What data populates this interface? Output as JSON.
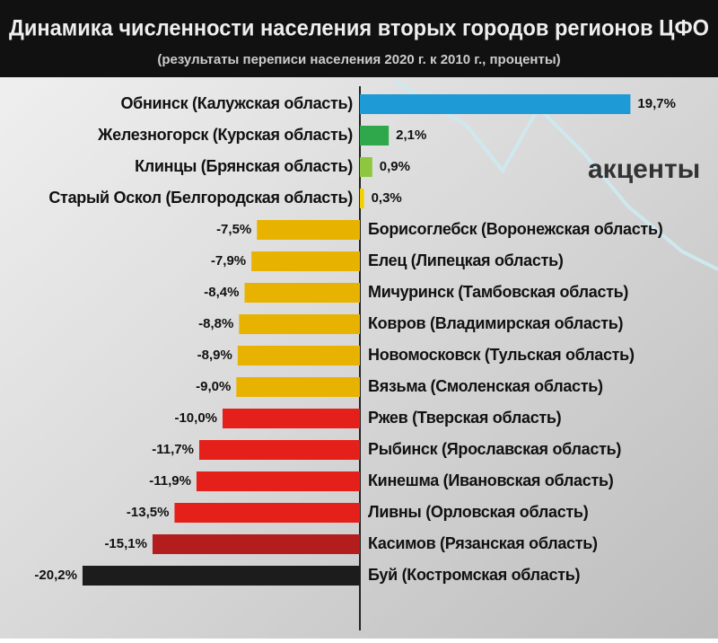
{
  "chart_data": {
    "type": "hbar",
    "title": "Динамика численности населения вторых городов регионов ЦФО",
    "subtitle": "(результаты переписи населения 2020 г. к 2010 г., проценты)",
    "logo": "акценты",
    "categories": [
      "Обнинск (Калужская область)",
      "Железногорск (Курская область)",
      "Клинцы (Брянская область)",
      "Старый Оскол (Белгородская область)",
      "Борисоглебск (Воронежская область)",
      "Елец (Липецкая область)",
      "Мичуринск (Тамбовская область)",
      "Ковров (Владимирская область)",
      "Новомосковск (Тульская область)",
      "Вязьма (Смоленская область)",
      "Ржев (Тверская область)",
      "Рыбинск (Ярославская область)",
      "Кинешма (Ивановская область)",
      "Ливны (Орловская область)",
      "Касимов (Рязанская область)",
      "Буй (Костромская область)"
    ],
    "values": [
      19.7,
      2.1,
      0.9,
      0.3,
      -7.5,
      -7.9,
      -8.4,
      -8.8,
      -8.9,
      -9.0,
      -10.0,
      -11.7,
      -11.9,
      -13.5,
      -15.1,
      -20.2
    ],
    "value_labels": [
      "19,7%",
      "2,1%",
      "0,9%",
      "0,3%",
      "-7,5%",
      "-7,9%",
      "-8,4%",
      "-8,8%",
      "-8,9%",
      "-9,0%",
      "-10,0%",
      "-11,7%",
      "-11,9%",
      "-13,5%",
      "-15,1%",
      "-20,2%"
    ],
    "colors": [
      "#1e9ad6",
      "#2ea84a",
      "#8dc63f",
      "#f2d000",
      "#e8b300",
      "#e8b300",
      "#e8b300",
      "#e8b300",
      "#e8b300",
      "#e8b300",
      "#e5201b",
      "#e5201b",
      "#e5201b",
      "#e5201b",
      "#b41d1d",
      "#1c1c1c"
    ]
  }
}
